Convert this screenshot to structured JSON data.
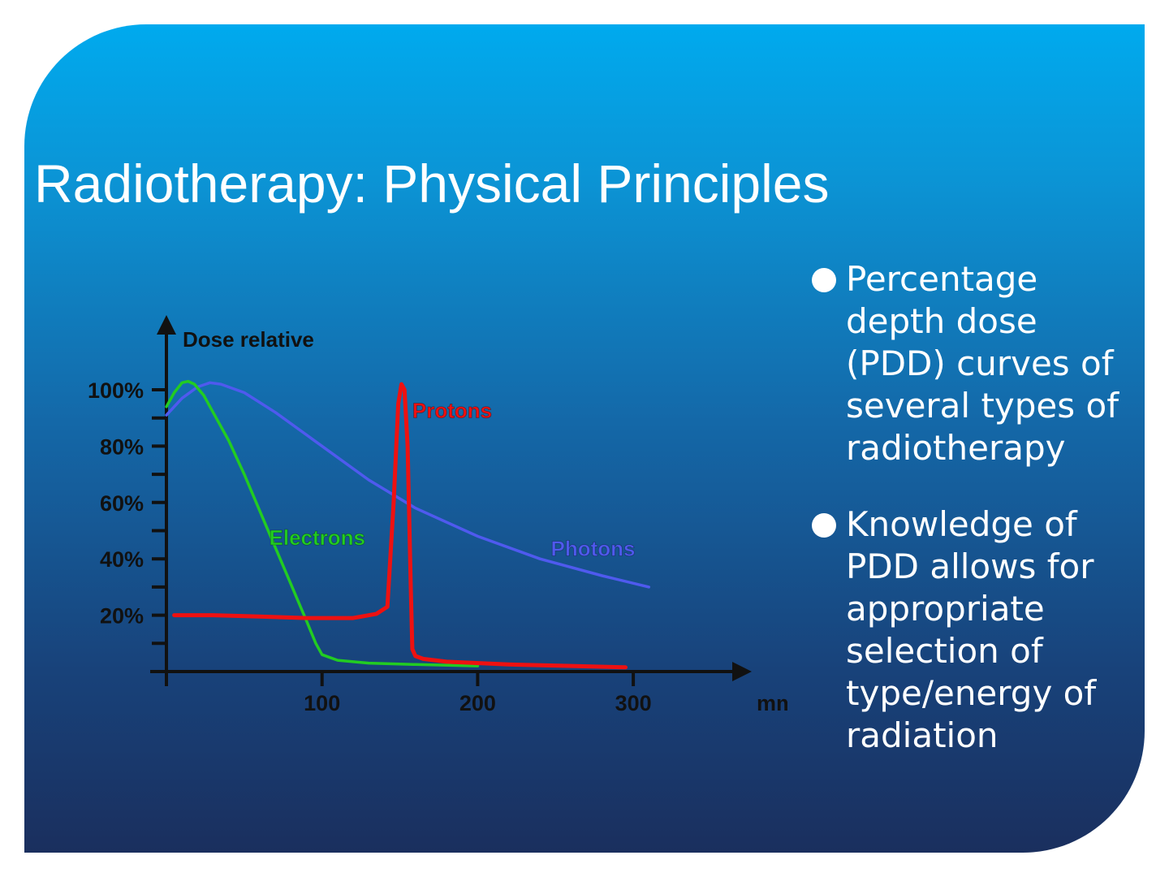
{
  "slide": {
    "title": "Radiotherapy: Physical Principles",
    "bullets": [
      "Percentage depth dose (PDD) curves of several types of radiotherapy",
      "Knowledge of PDD allows for appropriate selection of type/energy of radiation"
    ]
  },
  "colors": {
    "electrons": "#22cc22",
    "protons": "#ee1111",
    "photons": "#4f5aee",
    "axis": "#111111"
  },
  "chart_data": {
    "type": "line",
    "title": "",
    "ylabel": "Dose relative",
    "xlabel": "mm",
    "xlim": [
      0,
      340
    ],
    "ylim": [
      0,
      110
    ],
    "x_ticks": [
      100,
      200,
      300
    ],
    "x_tick_labels": [
      "100",
      "200",
      "300"
    ],
    "y_ticks": [
      20,
      40,
      60,
      80,
      100
    ],
    "y_tick_labels": [
      "20%",
      "40%",
      "60%",
      "80%",
      "100%"
    ],
    "legend": "inline labels",
    "series": [
      {
        "name": "Electrons",
        "x": [
          0,
          5,
          10,
          14,
          18,
          24,
          30,
          40,
          50,
          60,
          70,
          80,
          90,
          96,
          100,
          110,
          130,
          160,
          200
        ],
        "y": [
          94,
          99,
          102.5,
          103,
          102,
          98,
          92,
          82,
          70,
          57,
          44,
          31,
          18,
          10,
          6,
          4,
          3,
          2.5,
          2
        ]
      },
      {
        "name": "Protons",
        "x": [
          5,
          30,
          60,
          90,
          120,
          135,
          142,
          146,
          149,
          151,
          153,
          155,
          157,
          158,
          160,
          165,
          180,
          220,
          260,
          295
        ],
        "y": [
          20,
          20,
          19.5,
          19,
          19,
          20.5,
          23,
          60,
          95,
          102,
          100,
          80,
          30,
          8,
          5.5,
          4.5,
          3.5,
          2.5,
          2,
          1.5
        ]
      },
      {
        "name": "Photons",
        "x": [
          0,
          10,
          20,
          28,
          35,
          50,
          70,
          100,
          130,
          160,
          200,
          240,
          280,
          310
        ],
        "y": [
          91,
          97,
          101,
          102.5,
          102,
          99,
          92,
          80,
          68,
          58,
          48,
          40,
          34,
          30
        ]
      }
    ]
  }
}
